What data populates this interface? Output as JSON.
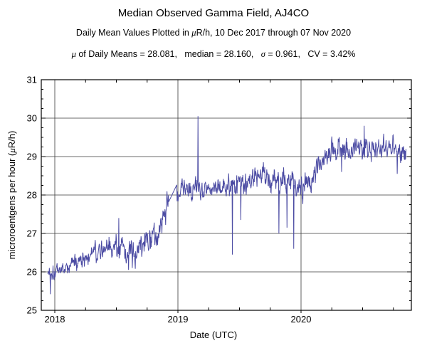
{
  "chart_data": {
    "type": "line",
    "title": "Median Observed Gamma Field, AJ4CO",
    "subtitle_segments": [
      {
        "t": "Daily Mean Values Plotted in "
      },
      {
        "t": "μ",
        "i": true
      },
      {
        "t": "R/h, 10 Dec 2017 through 07 Nov 2020"
      }
    ],
    "stats_segments": [
      {
        "t": "μ",
        "i": true
      },
      {
        "t": " of Daily Means = 28.081,   median = 28.160,   "
      },
      {
        "t": "σ",
        "i": true
      },
      {
        "t": " = 0.961,   CV = 3.42%"
      }
    ],
    "stats": {
      "mean_of_daily_means": 28.081,
      "median": 28.16,
      "sigma": 0.961,
      "cv_percent": 3.42
    },
    "xlabel": "Date (UTC)",
    "ylabel_segments": [
      {
        "t": "microroentgens per hour ("
      },
      {
        "t": "μ",
        "i": true
      },
      {
        "t": "R/h)"
      }
    ],
    "xlim": [
      2017.89,
      2020.896
    ],
    "ylim": [
      25,
      31
    ],
    "x_major_ticks": [
      2018,
      2019,
      2020
    ],
    "x_minor_step_years": 0.25,
    "y_major_ticks": [
      25,
      26,
      27,
      28,
      29,
      30,
      31
    ],
    "y_minor_step": 0.25,
    "grid": true,
    "line_color": "#4b4ba3",
    "axis_color": "#000000",
    "series": {
      "name": "daily-mean-gamma-field",
      "cadence_days": 1,
      "t_start": 2017.942,
      "t_end": 2020.853,
      "seed": 1337,
      "ar_coeff": 0.45,
      "trend_keypoints": [
        [
          2017.942,
          26.0
        ],
        [
          2018.02,
          26.05
        ],
        [
          2018.12,
          26.15
        ],
        [
          2018.22,
          26.35
        ],
        [
          2018.32,
          26.5
        ],
        [
          2018.42,
          26.6
        ],
        [
          2018.5,
          26.7
        ],
        [
          2018.56,
          26.5
        ],
        [
          2018.64,
          26.45
        ],
        [
          2018.7,
          26.65
        ],
        [
          2018.8,
          26.95
        ],
        [
          2018.87,
          27.35
        ],
        [
          2018.93,
          27.95
        ],
        [
          2019.0,
          28.05
        ],
        [
          2019.1,
          28.2
        ],
        [
          2019.3,
          28.3
        ],
        [
          2019.45,
          28.2
        ],
        [
          2019.58,
          28.45
        ],
        [
          2019.68,
          28.6
        ],
        [
          2019.75,
          28.45
        ],
        [
          2019.9,
          28.3
        ],
        [
          2020.0,
          28.2
        ],
        [
          2020.08,
          28.35
        ],
        [
          2020.16,
          29.0
        ],
        [
          2020.25,
          29.2
        ],
        [
          2020.5,
          29.2
        ],
        [
          2020.7,
          29.25
        ],
        [
          2020.853,
          29.15
        ]
      ],
      "noise_sigma_keypoints": [
        [
          2017.942,
          0.16
        ],
        [
          2018.2,
          0.2
        ],
        [
          2018.45,
          0.26
        ],
        [
          2018.7,
          0.3
        ],
        [
          2018.9,
          0.3
        ],
        [
          2019.05,
          0.26
        ],
        [
          2019.4,
          0.28
        ],
        [
          2019.75,
          0.3
        ],
        [
          2020.05,
          0.3
        ],
        [
          2020.25,
          0.26
        ],
        [
          2020.853,
          0.26
        ]
      ],
      "gaps": [
        [
          2018.925,
          2018.99
        ]
      ],
      "spikes": [
        [
          2017.965,
          25.42
        ],
        [
          2018.52,
          27.4
        ],
        [
          2018.6,
          26.05
        ],
        [
          2018.63,
          26.1
        ],
        [
          2019.162,
          30.05
        ],
        [
          2019.443,
          26.45
        ],
        [
          2019.51,
          27.35
        ],
        [
          2019.82,
          27.0
        ],
        [
          2019.885,
          27.15
        ],
        [
          2019.94,
          26.6
        ],
        [
          2020.33,
          28.6
        ],
        [
          2020.513,
          29.8
        ],
        [
          2020.78,
          28.55
        ]
      ]
    }
  }
}
